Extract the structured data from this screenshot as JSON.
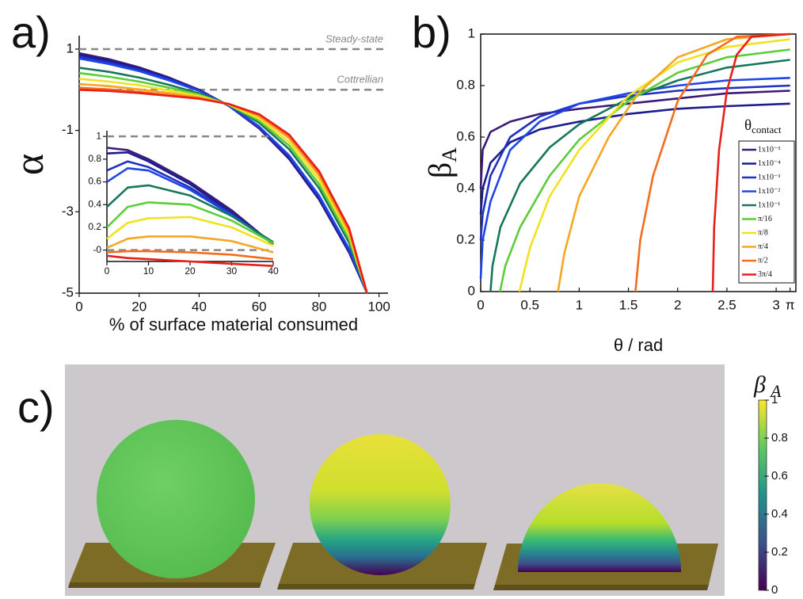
{
  "chart_data": [
    {
      "type": "line",
      "panel_label": "a)",
      "x": [
        0,
        10,
        20,
        30,
        40,
        50,
        60,
        70,
        80,
        90,
        96
      ],
      "xlim": [
        0,
        103
      ],
      "ylim": [
        -5,
        1.33
      ],
      "xticks": [
        0,
        20,
        40,
        60,
        80,
        100
      ],
      "yticks": [
        1,
        -1,
        -3,
        -5
      ],
      "xlabel": "% of surface material consumed",
      "ylabel": "α",
      "annotations": [
        {
          "label": "Steady-state",
          "y": 1
        },
        {
          "label": "Cottrellian",
          "y": 0
        }
      ],
      "series": [
        {
          "color": "#3d1a78",
          "values": [
            0.9,
            0.75,
            0.55,
            0.3,
            0.0,
            -0.4,
            -0.95,
            -1.7,
            -2.7,
            -4.0,
            -5
          ]
        },
        {
          "color": "#1c1c8f",
          "values": [
            0.86,
            0.71,
            0.52,
            0.28,
            -0.01,
            -0.4,
            -0.93,
            -1.67,
            -2.67,
            -3.97,
            -5
          ]
        },
        {
          "color": "#2030c0",
          "values": [
            0.81,
            0.67,
            0.49,
            0.26,
            -0.02,
            -0.4,
            -0.92,
            -1.64,
            -2.63,
            -3.94,
            -5
          ]
        },
        {
          "color": "#1f45e6",
          "values": [
            0.77,
            0.63,
            0.46,
            0.23,
            -0.03,
            -0.39,
            -0.9,
            -1.61,
            -2.6,
            -3.91,
            -5
          ]
        },
        {
          "color": "#17775a",
          "values": [
            0.54,
            0.44,
            0.3,
            0.12,
            -0.09,
            -0.38,
            -0.81,
            -1.46,
            -2.42,
            -3.76,
            -5
          ]
        },
        {
          "color": "#5ccd38",
          "values": [
            0.41,
            0.32,
            0.2,
            0.05,
            -0.12,
            -0.37,
            -0.76,
            -1.37,
            -2.32,
            -3.67,
            -5
          ]
        },
        {
          "color": "#f0e21e",
          "values": [
            0.27,
            0.2,
            0.11,
            -0.02,
            -0.15,
            -0.37,
            -0.71,
            -1.28,
            -2.21,
            -3.58,
            -5
          ]
        },
        {
          "color": "#f5a623",
          "values": [
            0.14,
            0.09,
            0.01,
            -0.08,
            -0.19,
            -0.36,
            -0.65,
            -1.19,
            -2.11,
            -3.49,
            -5
          ]
        },
        {
          "color": "#f46c1f",
          "values": [
            0.05,
            0.01,
            -0.05,
            -0.13,
            -0.21,
            -0.35,
            -0.62,
            -1.13,
            -2.04,
            -3.43,
            -5
          ]
        },
        {
          "color": "#e8201a",
          "values": [
            0,
            -0.03,
            -0.08,
            -0.15,
            -0.22,
            -0.35,
            -0.6,
            -1.1,
            -2.0,
            -3.4,
            -5
          ]
        }
      ]
    },
    {
      "type": "line",
      "x": [
        0,
        5,
        10,
        20,
        30,
        40
      ],
      "xlim": [
        0,
        40
      ],
      "ylim": [
        -0.1,
        1.05
      ],
      "xticks": [
        0,
        10,
        20,
        30,
        40
      ],
      "yticks": [
        1,
        0.8,
        0.6,
        0.4,
        0.2,
        {
          "value": 0,
          "label": "-0"
        }
      ],
      "reference_lines": [
        1,
        0
      ],
      "series": [
        {
          "color": "#3d1a78",
          "values": [
            0.9,
            0.88,
            0.8,
            0.6,
            0.35,
            0.05
          ]
        },
        {
          "color": "#1c1c8f",
          "values": [
            0.85,
            0.86,
            0.78,
            0.58,
            0.33,
            0.05
          ]
        },
        {
          "color": "#2030c0",
          "values": [
            0.7,
            0.78,
            0.73,
            0.55,
            0.32,
            0.06
          ]
        },
        {
          "color": "#1f45e6",
          "values": [
            0.6,
            0.72,
            0.7,
            0.53,
            0.31,
            0.06
          ]
        },
        {
          "color": "#17775a",
          "values": [
            0.38,
            0.55,
            0.57,
            0.48,
            0.3,
            0.07
          ]
        },
        {
          "color": "#5ccd38",
          "values": [
            0.2,
            0.38,
            0.42,
            0.4,
            0.26,
            0.06
          ]
        },
        {
          "color": "#f0e21e",
          "values": [
            0.1,
            0.24,
            0.28,
            0.29,
            0.2,
            0.04
          ]
        },
        {
          "color": "#f5a623",
          "values": [
            0.02,
            0.1,
            0.12,
            0.12,
            0.08,
            -0.02
          ]
        },
        {
          "color": "#f46c1f",
          "values": [
            -0.02,
            -0.01,
            -0.01,
            -0.02,
            -0.04,
            -0.08
          ]
        },
        {
          "color": "#e8201a",
          "values": [
            -0.05,
            -0.07,
            -0.08,
            -0.1,
            -0.12,
            -0.14
          ]
        }
      ]
    },
    {
      "type": "line",
      "panel_label": "b)",
      "xlim": [
        0,
        3.2
      ],
      "ylim": [
        0,
        1
      ],
      "xticks": [
        0,
        0.5,
        1,
        1.5,
        2,
        2.5,
        3,
        {
          "value": 3.1416,
          "label": "π"
        }
      ],
      "yticks": [
        0,
        0.2,
        0.4,
        0.6,
        0.8,
        1
      ],
      "xlabel": "θ / rad",
      "ylabel": "β",
      "ylabel_sub": "A",
      "legend_title": "θ",
      "legend_title_sub": "contact",
      "series": [
        {
          "name": "1x10⁻⁵",
          "color": "#3d1a78",
          "x": [
            0,
            0.02,
            0.1,
            0.3,
            0.6,
            1,
            1.5,
            2,
            2.5,
            3.1416
          ],
          "values": [
            0.4,
            0.55,
            0.62,
            0.66,
            0.69,
            0.71,
            0.73,
            0.75,
            0.77,
            0.78
          ]
        },
        {
          "name": "1x10⁻⁴",
          "color": "#1c1c8f",
          "x": [
            0,
            0.02,
            0.1,
            0.3,
            0.6,
            1,
            1.5,
            2,
            2.5,
            3.1416
          ],
          "values": [
            0.3,
            0.4,
            0.5,
            0.58,
            0.63,
            0.66,
            0.69,
            0.71,
            0.72,
            0.73
          ]
        },
        {
          "name": "1x10⁻³",
          "color": "#2030c0",
          "x": [
            0,
            0.02,
            0.1,
            0.3,
            0.6,
            1,
            1.5,
            2,
            2.5,
            3.1416
          ],
          "values": [
            0.2,
            0.3,
            0.45,
            0.6,
            0.68,
            0.73,
            0.76,
            0.78,
            0.79,
            0.8
          ]
        },
        {
          "name": "1x10⁻²",
          "color": "#1f45e6",
          "x": [
            0,
            0.02,
            0.1,
            0.3,
            0.6,
            1,
            1.5,
            2,
            2.5,
            3.1416
          ],
          "values": [
            0.05,
            0.2,
            0.35,
            0.55,
            0.66,
            0.73,
            0.77,
            0.8,
            0.82,
            0.83
          ]
        },
        {
          "name": "1x10⁻¹",
          "color": "#17775a",
          "x": [
            0.1,
            0.12,
            0.2,
            0.4,
            0.7,
            1,
            1.5,
            2,
            2.5,
            3.1416
          ],
          "values": [
            0,
            0.1,
            0.25,
            0.42,
            0.56,
            0.65,
            0.75,
            0.82,
            0.87,
            0.9
          ]
        },
        {
          "name": "π/16",
          "color": "#5ccd38",
          "x": [
            0.196,
            0.25,
            0.4,
            0.7,
            1,
            1.5,
            2,
            2.5,
            3.1416
          ],
          "values": [
            0,
            0.1,
            0.25,
            0.45,
            0.59,
            0.74,
            0.85,
            0.91,
            0.94
          ]
        },
        {
          "name": "π/8",
          "color": "#f0e21e",
          "x": [
            0.393,
            0.5,
            0.7,
            1,
            1.5,
            2,
            2.5,
            3.1416
          ],
          "values": [
            0,
            0.17,
            0.37,
            0.55,
            0.76,
            0.89,
            0.95,
            0.98
          ]
        },
        {
          "name": "π/4",
          "color": "#f5a623",
          "x": [
            0.785,
            0.85,
            1,
            1.3,
            1.6,
            2,
            2.5,
            3.1416
          ],
          "values": [
            0,
            0.15,
            0.37,
            0.6,
            0.77,
            0.91,
            0.98,
            1
          ]
        },
        {
          "name": "π/2",
          "color": "#f46c1f",
          "x": [
            1.571,
            1.62,
            1.75,
            2,
            2.3,
            2.6,
            3.1416
          ],
          "values": [
            0,
            0.2,
            0.45,
            0.74,
            0.92,
            0.99,
            1
          ]
        },
        {
          "name": "3π/4",
          "color": "#e8201a",
          "x": [
            2.356,
            2.37,
            2.42,
            2.5,
            2.6,
            2.75,
            3.1416
          ],
          "values": [
            0,
            0.25,
            0.55,
            0.78,
            0.92,
            0.99,
            1
          ]
        }
      ]
    },
    {
      "type": "colorbar",
      "panel_label": "c)",
      "title": "β",
      "title_sub": "A",
      "ylim": [
        0,
        1
      ],
      "yticks": [
        0,
        0.2,
        0.4,
        0.6,
        0.8,
        1
      ],
      "colors": [
        "#440154",
        "#3b528b",
        "#21918c",
        "#5ec962",
        "#fde725"
      ]
    }
  ]
}
